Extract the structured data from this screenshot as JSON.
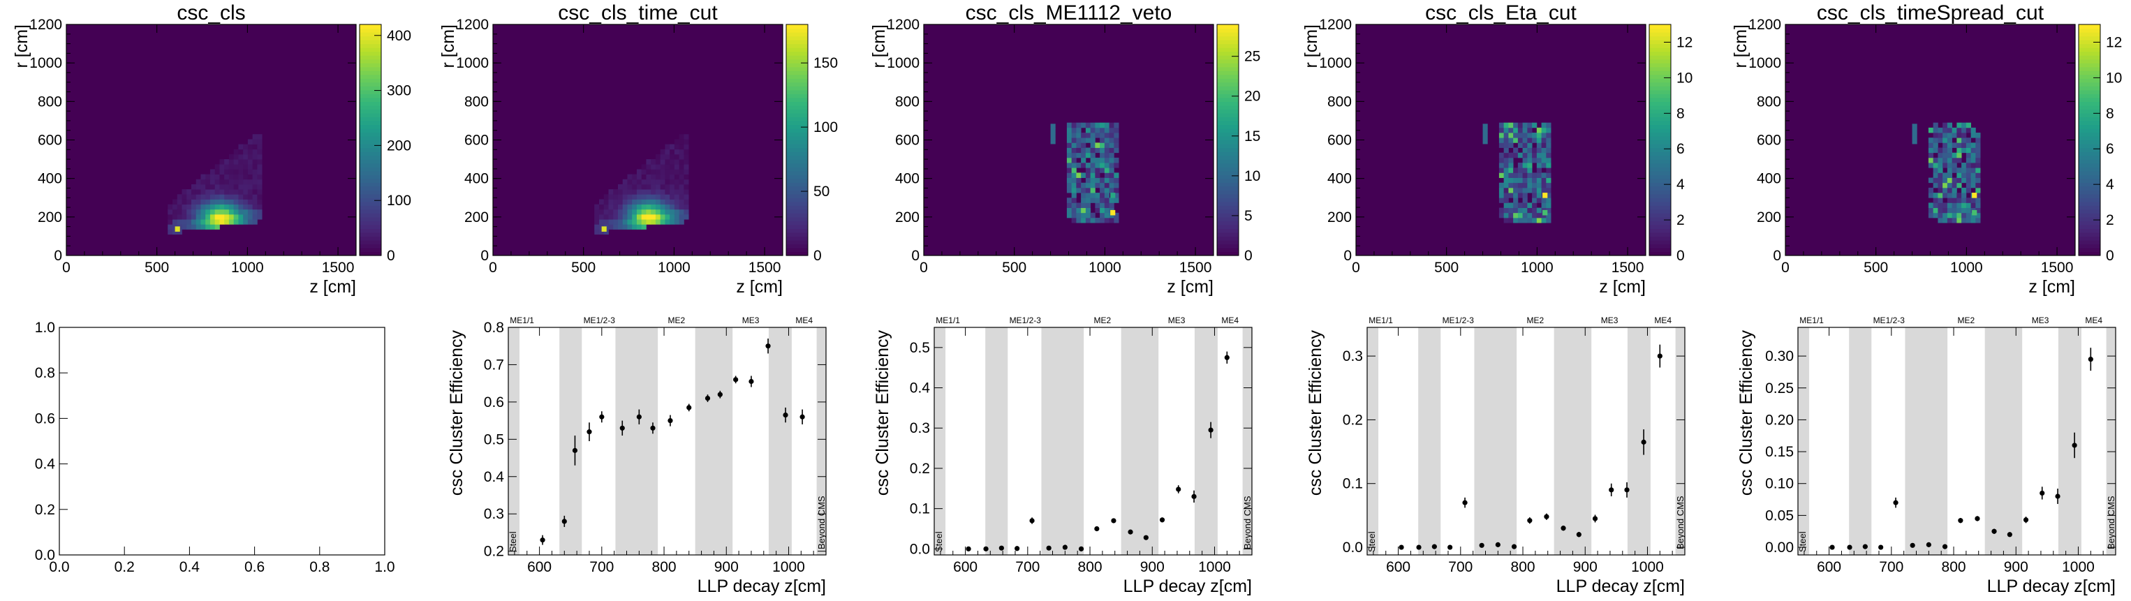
{
  "chart_data": [
    {
      "type": "heatmap",
      "title": "csc_cls",
      "xlabel": "z [cm]",
      "ylabel": "r [cm]",
      "xlim": [
        0,
        1600
      ],
      "ylim": [
        0,
        1200
      ],
      "xticks": [
        "0",
        "500",
        "1000",
        "1500"
      ],
      "yticks": [
        "0",
        "200",
        "400",
        "600",
        "800",
        "1000",
        "1200"
      ],
      "zlim": [
        0,
        420
      ],
      "zticks": [
        "0",
        "100",
        "200",
        "300",
        "400"
      ],
      "hotspot": {
        "z": 840,
        "r": 185,
        "value": 420
      }
    },
    {
      "type": "heatmap",
      "title": "csc_cls_time_cut",
      "xlabel": "z [cm]",
      "ylabel": "r [cm]",
      "xlim": [
        0,
        1600
      ],
      "ylim": [
        0,
        1200
      ],
      "xticks": [
        "0",
        "500",
        "1000",
        "1500"
      ],
      "yticks": [
        "0",
        "200",
        "400",
        "600",
        "800",
        "1000",
        "1200"
      ],
      "zlim": [
        0,
        180
      ],
      "zticks": [
        "0",
        "50",
        "100",
        "150"
      ],
      "hotspot": {
        "z": 850,
        "r": 190,
        "value": 180
      }
    },
    {
      "type": "heatmap",
      "title": "csc_cls_ME1112_veto",
      "xlabel": "z [cm]",
      "ylabel": "r [cm]",
      "xlim": [
        0,
        1600
      ],
      "ylim": [
        0,
        1200
      ],
      "xticks": [
        "0",
        "500",
        "1000",
        "1500"
      ],
      "yticks": [
        "0",
        "200",
        "400",
        "600",
        "800",
        "1000",
        "1200"
      ],
      "zlim": [
        0,
        29
      ],
      "zticks": [
        "0",
        "5",
        "10",
        "15",
        "20",
        "25"
      ],
      "hotspot": {
        "z": 1020,
        "r": 210,
        "value": 29
      }
    },
    {
      "type": "heatmap",
      "title": "csc_cls_Eta_cut",
      "xlabel": "z [cm]",
      "ylabel": "r [cm]",
      "xlim": [
        0,
        1600
      ],
      "ylim": [
        0,
        1200
      ],
      "xticks": [
        "0",
        "500",
        "1000",
        "1500"
      ],
      "yticks": [
        "0",
        "200",
        "400",
        "600",
        "800",
        "1000",
        "1200"
      ],
      "zlim": [
        0,
        13
      ],
      "zticks": [
        "0",
        "2",
        "4",
        "6",
        "8",
        "10",
        "12"
      ],
      "hotspot": {
        "z": 1020,
        "r": 300,
        "value": 13
      }
    },
    {
      "type": "heatmap",
      "title": "csc_cls_timeSpread_cut",
      "xlabel": "z [cm]",
      "ylabel": "r [cm]",
      "xlim": [
        0,
        1600
      ],
      "ylim": [
        0,
        1200
      ],
      "xticks": [
        "0",
        "500",
        "1000",
        "1500"
      ],
      "yticks": [
        "0",
        "200",
        "400",
        "600",
        "800",
        "1000",
        "1200"
      ],
      "zlim": [
        0,
        13
      ],
      "zticks": [
        "0",
        "2",
        "4",
        "6",
        "8",
        "10",
        "12"
      ],
      "hotspot": {
        "z": 1020,
        "r": 300,
        "value": 12.5
      }
    },
    {
      "type": "empty",
      "xlim": [
        0,
        1
      ],
      "ylim": [
        0,
        1
      ],
      "xticks": [
        "0.0",
        "0.2",
        "0.4",
        "0.6",
        "0.8",
        "1.0"
      ],
      "yticks": [
        "0.0",
        "0.2",
        "0.4",
        "0.6",
        "0.8",
        "1.0"
      ]
    },
    {
      "type": "scatter",
      "xlabel": "LLP decay z[cm]",
      "ylabel": "csc Cluster Efficiency",
      "xlim": [
        550,
        1060
      ],
      "ylim": [
        0.19,
        0.8
      ],
      "xticks": [
        "600",
        "700",
        "800",
        "900",
        "1000"
      ],
      "yticks": [
        "0.2",
        "0.3",
        "0.4",
        "0.5",
        "0.6",
        "0.7",
        "0.8"
      ],
      "x": [
        605,
        640,
        657,
        680,
        700,
        733,
        760,
        782,
        810,
        840,
        870,
        890,
        915,
        940,
        967,
        995,
        1022
      ],
      "y": [
        0.23,
        0.28,
        0.47,
        0.52,
        0.56,
        0.53,
        0.56,
        0.53,
        0.55,
        0.585,
        0.61,
        0.62,
        0.66,
        0.655,
        0.75,
        0.565,
        0.56
      ],
      "yerr": [
        0.013,
        0.015,
        0.04,
        0.025,
        0.015,
        0.02,
        0.02,
        0.015,
        0.015,
        0.01,
        0.01,
        0.01,
        0.01,
        0.015,
        0.02,
        0.02,
        0.02
      ],
      "bands": [
        [
          550,
          568
        ],
        [
          632,
          668
        ],
        [
          722,
          790
        ],
        [
          850,
          910
        ],
        [
          968,
          1005
        ],
        [
          1045,
          1060
        ]
      ],
      "band_names": [
        {
          "label": "ME1/1",
          "x": 572
        },
        {
          "label": "ME1/2-3",
          "x": 696
        },
        {
          "label": "ME2",
          "x": 820
        },
        {
          "label": "ME3",
          "x": 939
        },
        {
          "label": "ME4",
          "x": 1025
        }
      ],
      "side_labels": [
        {
          "label": "Steel",
          "x": 557
        },
        {
          "label": "Beyond CMS",
          "x": 1052
        }
      ]
    },
    {
      "type": "scatter",
      "xlabel": "LLP decay z[cm]",
      "ylabel": "csc Cluster Efficiency",
      "xlim": [
        550,
        1060
      ],
      "ylim": [
        -0.015,
        0.55
      ],
      "xticks": [
        "600",
        "700",
        "800",
        "900",
        "1000"
      ],
      "yticks": [
        "0.0",
        "0.1",
        "0.2",
        "0.3",
        "0.4",
        "0.5"
      ],
      "x": [
        605,
        633,
        658,
        683,
        707,
        734,
        760,
        786,
        811,
        838,
        865,
        890,
        916,
        942,
        967,
        994,
        1020
      ],
      "y": [
        0.0,
        0.0,
        0.002,
        0.001,
        0.07,
        0.002,
        0.004,
        0.0,
        0.05,
        0.07,
        0.042,
        0.028,
        0.072,
        0.148,
        0.13,
        0.295,
        0.475
      ],
      "yerr": [
        0.0,
        0.0,
        0.002,
        0.001,
        0.008,
        0.002,
        0.003,
        0.0,
        0.005,
        0.006,
        0.005,
        0.004,
        0.006,
        0.01,
        0.015,
        0.02,
        0.015
      ],
      "bands": [
        [
          550,
          568
        ],
        [
          632,
          668
        ],
        [
          722,
          790
        ],
        [
          850,
          910
        ],
        [
          968,
          1005
        ],
        [
          1045,
          1060
        ]
      ],
      "band_names": [
        {
          "label": "ME1/1",
          "x": 572
        },
        {
          "label": "ME1/2-3",
          "x": 696
        },
        {
          "label": "ME2",
          "x": 820
        },
        {
          "label": "ME3",
          "x": 939
        },
        {
          "label": "ME4",
          "x": 1025
        }
      ],
      "side_labels": [
        {
          "label": "Steel",
          "x": 557
        },
        {
          "label": "Beyond CMS",
          "x": 1052
        }
      ]
    },
    {
      "type": "scatter",
      "xlabel": "LLP decay z[cm]",
      "ylabel": "csc Cluster Efficiency",
      "xlim": [
        550,
        1060
      ],
      "ylim": [
        -0.012,
        0.345
      ],
      "xticks": [
        "600",
        "700",
        "800",
        "900",
        "1000"
      ],
      "yticks": [
        "0.0",
        "0.1",
        "0.2",
        "0.3"
      ],
      "x": [
        605,
        633,
        658,
        683,
        707,
        734,
        760,
        786,
        811,
        838,
        865,
        890,
        916,
        942,
        967,
        994,
        1020
      ],
      "y": [
        0.0,
        0.0,
        0.001,
        0.0,
        0.07,
        0.003,
        0.004,
        0.001,
        0.042,
        0.048,
        0.03,
        0.02,
        0.045,
        0.09,
        0.09,
        0.165,
        0.3
      ],
      "yerr": [
        0.0,
        0.0,
        0.002,
        0.0,
        0.008,
        0.002,
        0.002,
        0.001,
        0.005,
        0.005,
        0.004,
        0.004,
        0.006,
        0.01,
        0.012,
        0.02,
        0.018
      ],
      "bands": [
        [
          550,
          568
        ],
        [
          632,
          668
        ],
        [
          722,
          790
        ],
        [
          850,
          910
        ],
        [
          968,
          1005
        ],
        [
          1045,
          1060
        ]
      ],
      "band_names": [
        {
          "label": "ME1/1",
          "x": 572
        },
        {
          "label": "ME1/2-3",
          "x": 696
        },
        {
          "label": "ME2",
          "x": 820
        },
        {
          "label": "ME3",
          "x": 939
        },
        {
          "label": "ME4",
          "x": 1025
        }
      ],
      "side_labels": [
        {
          "label": "Steel",
          "x": 557
        },
        {
          "label": "Beyond CMS",
          "x": 1052
        }
      ]
    },
    {
      "type": "scatter",
      "xlabel": "LLP decay z[cm]",
      "ylabel": "csc Cluster Efficiency",
      "xlim": [
        550,
        1060
      ],
      "ylim": [
        -0.012,
        0.345
      ],
      "xticks": [
        "600",
        "700",
        "800",
        "900",
        "1000"
      ],
      "yticks": [
        "0.00",
        "0.05",
        "0.10",
        "0.15",
        "0.20",
        "0.25",
        "0.30"
      ],
      "x": [
        605,
        633,
        658,
        683,
        707,
        734,
        760,
        786,
        811,
        838,
        865,
        890,
        916,
        942,
        967,
        994,
        1020
      ],
      "y": [
        0.0,
        0.0,
        0.001,
        0.0,
        0.07,
        0.003,
        0.004,
        0.001,
        0.042,
        0.045,
        0.025,
        0.02,
        0.043,
        0.085,
        0.08,
        0.16,
        0.295
      ],
      "yerr": [
        0.0,
        0.0,
        0.002,
        0.0,
        0.008,
        0.002,
        0.002,
        0.001,
        0.004,
        0.004,
        0.004,
        0.003,
        0.005,
        0.01,
        0.012,
        0.02,
        0.018
      ],
      "bands": [
        [
          550,
          568
        ],
        [
          632,
          668
        ],
        [
          722,
          790
        ],
        [
          850,
          910
        ],
        [
          968,
          1005
        ],
        [
          1045,
          1060
        ]
      ],
      "band_names": [
        {
          "label": "ME1/1",
          "x": 572
        },
        {
          "label": "ME1/2-3",
          "x": 696
        },
        {
          "label": "ME2",
          "x": 820
        },
        {
          "label": "ME3",
          "x": 939
        },
        {
          "label": "ME4",
          "x": 1025
        }
      ],
      "side_labels": [
        {
          "label": "Steel",
          "x": 557
        },
        {
          "label": "Beyond CMS",
          "x": 1052
        }
      ]
    }
  ]
}
